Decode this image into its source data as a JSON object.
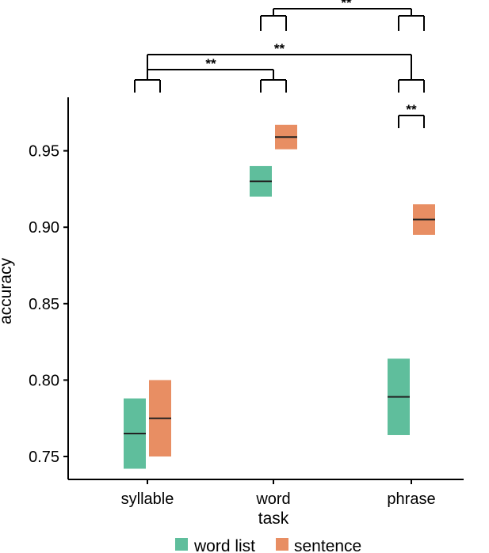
{
  "chart_data": {
    "type": "crossbar",
    "xlabel": "task",
    "ylabel": "accuracy",
    "categories": [
      "syllable",
      "word",
      "phrase"
    ],
    "ylim": [
      0.735,
      0.985
    ],
    "yticks": [
      0.75,
      0.8,
      0.85,
      0.9,
      0.95
    ],
    "ytick_labels": [
      "0.75",
      "0.80",
      "0.85",
      "0.90",
      "0.95"
    ],
    "grid": false,
    "legend_position": "bottom",
    "series": [
      {
        "name": "word list",
        "color": "#5fbe9c",
        "values": [
          {
            "category": "syllable",
            "mean": 0.765,
            "lower": 0.742,
            "upper": 0.788
          },
          {
            "category": "word",
            "mean": 0.93,
            "lower": 0.92,
            "upper": 0.94
          },
          {
            "category": "phrase",
            "mean": 0.789,
            "lower": 0.764,
            "upper": 0.814
          }
        ]
      },
      {
        "name": "sentence",
        "color": "#e88e63",
        "values": [
          {
            "category": "syllable",
            "mean": 0.775,
            "lower": 0.75,
            "upper": 0.8
          },
          {
            "category": "word",
            "mean": 0.959,
            "lower": 0.951,
            "upper": 0.967
          },
          {
            "category": "phrase",
            "mean": 0.905,
            "lower": 0.895,
            "upper": 0.915
          }
        ]
      }
    ],
    "significance": [
      {
        "from": "word",
        "to": "phrase",
        "label": "**",
        "level": 3
      },
      {
        "from": "syllable",
        "to": "phrase",
        "label": "**",
        "level": 2
      },
      {
        "from": "syllable",
        "to": "word",
        "label": "**",
        "level": 1
      },
      {
        "from": "phrase",
        "to": "phrase",
        "label": "**",
        "level": 0,
        "within": true
      }
    ]
  }
}
